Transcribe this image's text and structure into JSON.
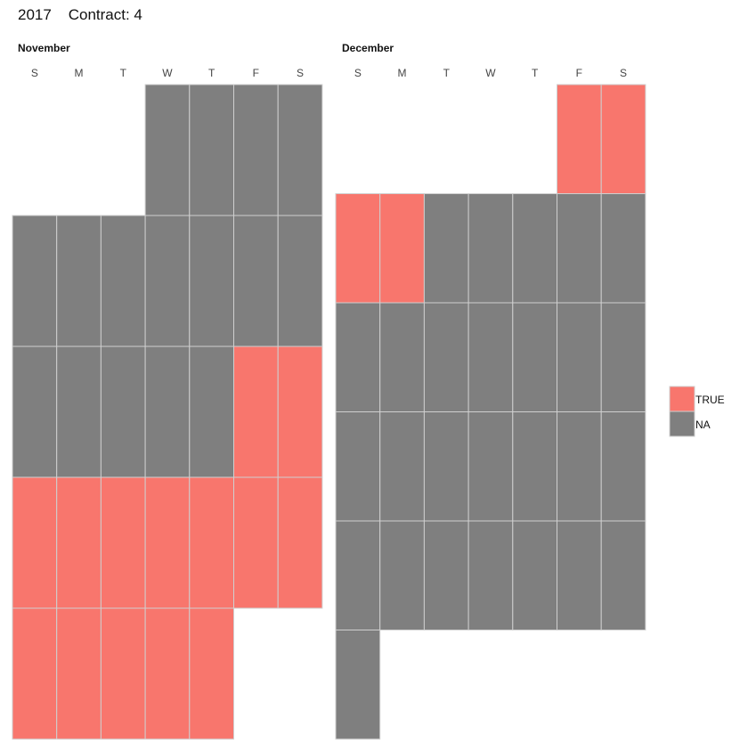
{
  "title": "2017    Contract: 4",
  "colors": {
    "TRUE": "#f8766d",
    "NA": "#7f7f7f",
    "cell_border": "#cfcfcf"
  },
  "chart_data": {
    "type": "heatmap",
    "year": 2017,
    "weekday_labels": [
      "S",
      "M",
      "T",
      "W",
      "T",
      "F",
      "S"
    ],
    "legend": [
      {
        "label": "TRUE",
        "color": "#f8766d"
      },
      {
        "label": "NA",
        "color": "#7f7f7f"
      }
    ],
    "legend_position": "right",
    "months": [
      {
        "name": "November",
        "first_weekday": 3,
        "weeks": [
          [
            null,
            null,
            null,
            "NA",
            "NA",
            "NA",
            "NA"
          ],
          [
            "NA",
            "NA",
            "NA",
            "NA",
            "NA",
            "NA",
            "NA"
          ],
          [
            "NA",
            "NA",
            "NA",
            "NA",
            "NA",
            "TRUE",
            "TRUE"
          ],
          [
            "TRUE",
            "TRUE",
            "TRUE",
            "TRUE",
            "TRUE",
            "TRUE",
            "TRUE"
          ],
          [
            "TRUE",
            "TRUE",
            "TRUE",
            "TRUE",
            "TRUE",
            null,
            null
          ]
        ]
      },
      {
        "name": "December",
        "first_weekday": 5,
        "weeks": [
          [
            null,
            null,
            null,
            null,
            null,
            "TRUE",
            "TRUE"
          ],
          [
            "TRUE",
            "TRUE",
            "NA",
            "NA",
            "NA",
            "NA",
            "NA"
          ],
          [
            "NA",
            "NA",
            "NA",
            "NA",
            "NA",
            "NA",
            "NA"
          ],
          [
            "NA",
            "NA",
            "NA",
            "NA",
            "NA",
            "NA",
            "NA"
          ],
          [
            "NA",
            "NA",
            "NA",
            "NA",
            "NA",
            "NA",
            "NA"
          ],
          [
            "NA",
            null,
            null,
            null,
            null,
            null,
            null
          ]
        ]
      }
    ]
  }
}
